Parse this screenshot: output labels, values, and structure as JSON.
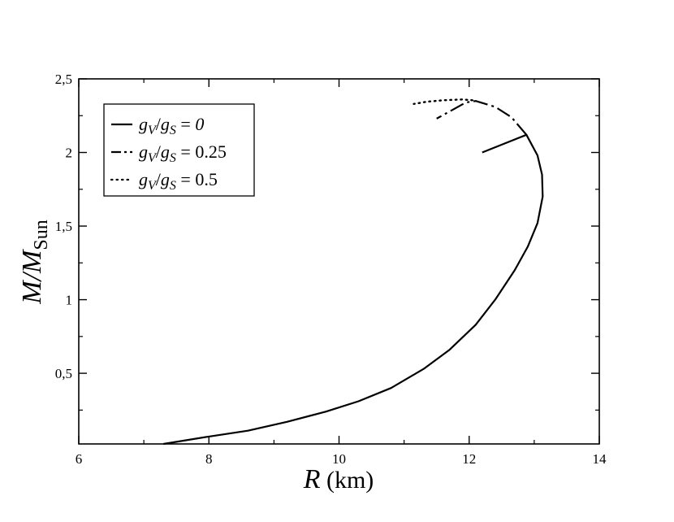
{
  "chart_data": {
    "type": "line",
    "title": "",
    "xlabel_main": "R",
    "xlabel_unit": " (km)",
    "ylabel_main": "M/M",
    "ylabel_sub": "Sun",
    "xlim": [
      6,
      14
    ],
    "ylim": [
      0.02,
      2.5
    ],
    "x_ticks": [
      {
        "value": 6,
        "label": "6"
      },
      {
        "value": 8,
        "label": "8"
      },
      {
        "value": 10,
        "label": "10"
      },
      {
        "value": 12,
        "label": "12"
      },
      {
        "value": 14,
        "label": "14"
      }
    ],
    "y_ticks": [
      {
        "value": 0.5,
        "label": "0,5"
      },
      {
        "value": 1,
        "label": "1"
      },
      {
        "value": 1.5,
        "label": "1,5"
      },
      {
        "value": 2,
        "label": "2"
      },
      {
        "value": 2.5,
        "label": "2,5"
      }
    ],
    "grid": false,
    "legend_position": "top-left",
    "series": [
      {
        "legend_g1": "g",
        "legend_s1": "V",
        "legend_slash": "/",
        "legend_g2": "g",
        "legend_s2": "S",
        "legend_eq": " = ",
        "legend_val": "0",
        "legend_val_italic": true,
        "style": "solid",
        "points": [
          [
            7.3,
            0.02
          ],
          [
            8.0,
            0.07
          ],
          [
            8.6,
            0.11
          ],
          [
            9.2,
            0.17
          ],
          [
            9.8,
            0.24
          ],
          [
            10.3,
            0.31
          ],
          [
            10.8,
            0.4
          ],
          [
            11.3,
            0.53
          ],
          [
            11.7,
            0.66
          ],
          [
            12.1,
            0.83
          ],
          [
            12.4,
            1.0
          ],
          [
            12.7,
            1.2
          ],
          [
            12.9,
            1.36
          ],
          [
            13.05,
            1.52
          ],
          [
            13.13,
            1.7
          ],
          [
            13.12,
            1.85
          ],
          [
            13.05,
            1.98
          ],
          [
            12.88,
            2.12
          ],
          [
            12.2,
            2.0
          ]
        ]
      },
      {
        "legend_g1": "g",
        "legend_s1": "V",
        "legend_slash": "/",
        "legend_g2": "g",
        "legend_s2": "S",
        "legend_eq": " = ",
        "legend_val": "0.25",
        "legend_val_italic": false,
        "style": "dashdot",
        "points": [
          [
            12.88,
            2.12
          ],
          [
            12.65,
            2.24
          ],
          [
            12.4,
            2.31
          ],
          [
            12.1,
            2.35
          ],
          [
            11.95,
            2.34
          ],
          [
            11.5,
            2.23
          ]
        ]
      },
      {
        "legend_g1": "g",
        "legend_s1": "V",
        "legend_slash": "/",
        "legend_g2": "g",
        "legend_s2": "S",
        "legend_eq": " = ",
        "legend_val": "0.5",
        "legend_val_italic": false,
        "style": "dotted",
        "points": [
          [
            12.05,
            2.355
          ],
          [
            11.9,
            2.36
          ],
          [
            11.6,
            2.355
          ],
          [
            11.35,
            2.345
          ],
          [
            11.15,
            2.33
          ]
        ]
      }
    ]
  }
}
